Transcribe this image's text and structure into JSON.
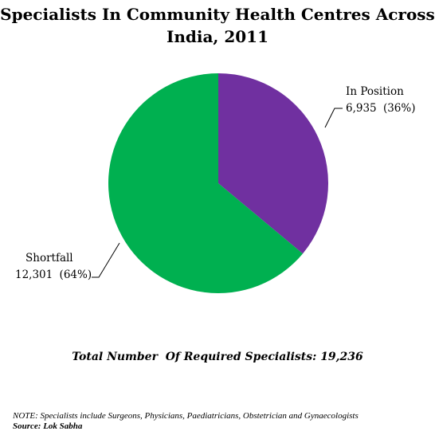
{
  "chart_data": {
    "type": "pie",
    "title": "Specialists In Community Health Centres Across India, 2011",
    "title_lines": [
      "Specialists In Community Health Centres Across",
      "India, 2011"
    ],
    "slices": [
      {
        "label": "In Position",
        "value": 6935,
        "value_text": "6,935",
        "percent_text": "(36%)",
        "percent": 36,
        "color": "#7030a0"
      },
      {
        "label": "Shortfall",
        "value": 12301,
        "value_text": "12,301",
        "percent_text": "(64%)",
        "percent": 64,
        "color": "#00b050"
      }
    ]
  },
  "footer": {
    "total": "Total Number  Of Required Specialists: 19,236",
    "note": "NOTE: Specialists include Surgeons, Physicians, Paediatricians, Obstetrician and Gynaecologists",
    "source": "Source: Lok Sabha"
  }
}
